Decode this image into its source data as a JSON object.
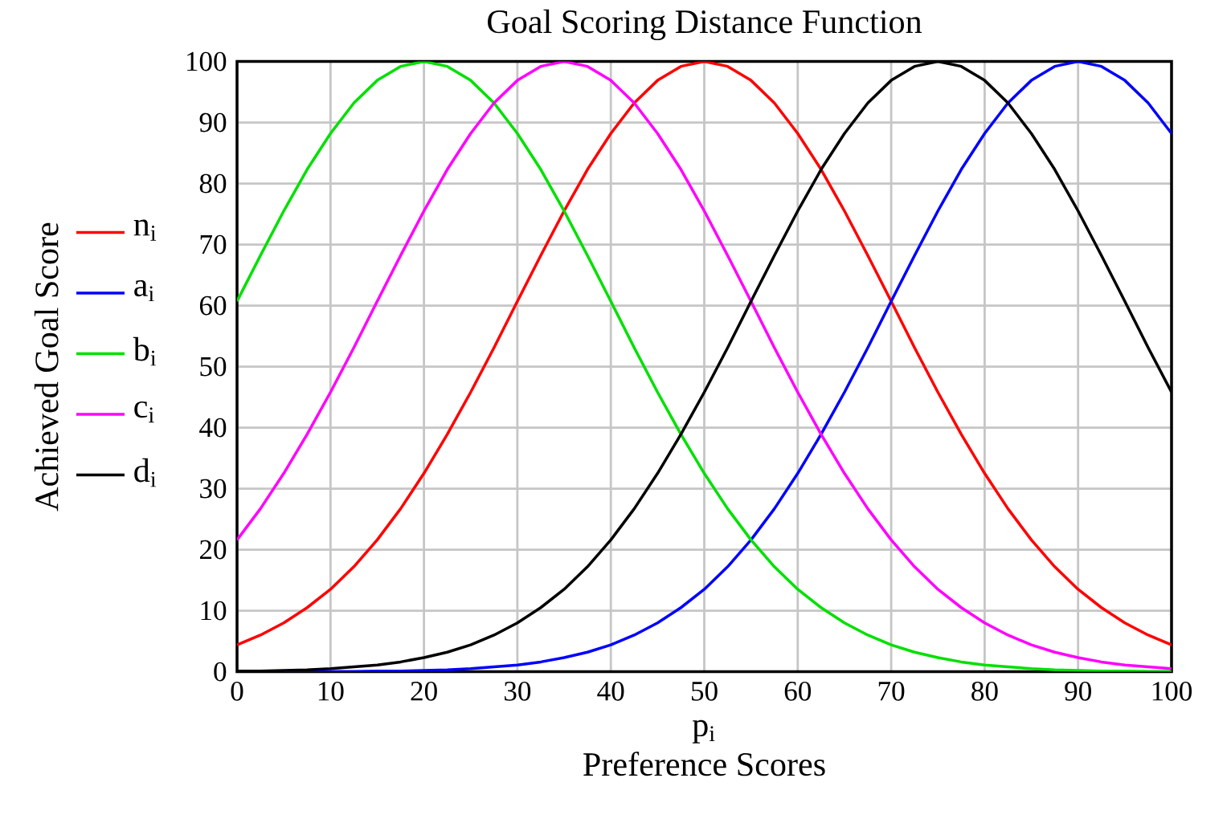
{
  "chart_data": {
    "type": "line",
    "title": "Goal Scoring Distance Function",
    "xlabel": "Preference Scores",
    "ylabel": "Achieved Goal Score",
    "annotations": [
      "p$_{i}$"
    ],
    "x": [
      0,
      2.5,
      5,
      7.5,
      10,
      12.5,
      15,
      17.5,
      20,
      22.5,
      25,
      27.5,
      30,
      32.5,
      35,
      37.5,
      40,
      42.5,
      45,
      47.5,
      50,
      52.5,
      55,
      57.5,
      60,
      62.5,
      65,
      67.5,
      70,
      72.5,
      75,
      77.5,
      80,
      82.5,
      85,
      87.5,
      90,
      92.5,
      95,
      97.5,
      100
    ],
    "series": [
      {
        "name": "n$_{i}$",
        "color": "#ff0000",
        "values": [
          4.4,
          6.0,
          8.0,
          10.5,
          13.5,
          17.2,
          21.6,
          26.7,
          32.5,
          38.9,
          45.8,
          53.1,
          60.7,
          68.2,
          75.5,
          82.3,
          88.2,
          93.2,
          96.9,
          99.2,
          100,
          99.2,
          96.9,
          93.2,
          88.2,
          82.3,
          75.5,
          68.2,
          60.7,
          53.1,
          45.8,
          38.9,
          32.5,
          26.7,
          21.6,
          17.2,
          13.5,
          10.5,
          8.0,
          6.0,
          4.4
        ]
      },
      {
        "name": "a$_{i}$",
        "color": "#0000ff",
        "values": [
          null,
          null,
          0,
          0,
          0,
          0,
          0.1,
          0.1,
          0.2,
          0.3,
          0.5,
          0.8,
          1.1,
          1.6,
          2.3,
          3.2,
          4.4,
          6.0,
          8.0,
          10.5,
          13.5,
          17.2,
          21.6,
          26.7,
          32.5,
          38.9,
          45.8,
          53.1,
          60.7,
          68.2,
          75.5,
          82.3,
          88.2,
          93.2,
          96.9,
          99.2,
          100,
          99.2,
          96.9,
          93.2,
          88.2
        ]
      },
      {
        "name": "b$_{i}$",
        "color": "#00e000",
        "values": [
          60.7,
          68.2,
          75.5,
          82.3,
          88.2,
          93.2,
          96.9,
          99.2,
          100,
          99.2,
          96.9,
          93.2,
          88.2,
          82.3,
          75.5,
          68.2,
          60.7,
          53.1,
          45.8,
          38.9,
          32.5,
          26.7,
          21.6,
          17.2,
          13.5,
          10.5,
          8.0,
          6.0,
          4.4,
          3.2,
          2.3,
          1.6,
          1.1,
          0.8,
          0.5,
          0.3,
          0.2,
          0.1,
          0.1,
          0,
          0
        ]
      },
      {
        "name": "c$_{i}$",
        "color": "#ff00ff",
        "values": [
          21.6,
          26.7,
          32.5,
          38.9,
          45.8,
          53.1,
          60.7,
          68.2,
          75.5,
          82.3,
          88.2,
          93.2,
          96.9,
          99.2,
          100,
          99.2,
          96.9,
          93.2,
          88.2,
          82.3,
          75.5,
          68.2,
          60.7,
          53.1,
          45.8,
          38.9,
          32.5,
          26.7,
          21.6,
          17.2,
          13.5,
          10.5,
          8.0,
          6.0,
          4.4,
          3.2,
          2.3,
          1.6,
          1.1,
          0.8,
          0.5
        ]
      },
      {
        "name": "d$_{i}$",
        "color": "#000000",
        "values": [
          0.1,
          0.1,
          0.2,
          0.3,
          0.5,
          0.8,
          1.1,
          1.6,
          2.3,
          3.2,
          4.4,
          6.0,
          8.0,
          10.5,
          13.5,
          17.2,
          21.6,
          26.7,
          32.5,
          38.9,
          45.8,
          53.1,
          60.7,
          68.2,
          75.5,
          82.3,
          88.2,
          93.2,
          96.9,
          99.2,
          100,
          99.2,
          96.9,
          93.2,
          88.2,
          82.3,
          75.5,
          68.2,
          60.7,
          53.1,
          45.8
        ]
      }
    ],
    "xlim": [
      0,
      100
    ],
    "ylim": [
      0,
      100
    ],
    "xticks": [
      0,
      10,
      20,
      30,
      40,
      50,
      60,
      70,
      80,
      90,
      100
    ],
    "yticks": [
      0,
      10,
      20,
      30,
      40,
      50,
      60,
      70,
      80,
      90,
      100
    ],
    "grid": true,
    "legend": "left",
    "marker": "none",
    "line_style": "solid"
  }
}
